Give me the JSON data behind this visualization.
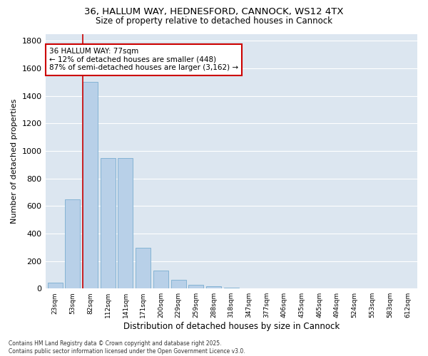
{
  "title_line1": "36, HALLUM WAY, HEDNESFORD, CANNOCK, WS12 4TX",
  "title_line2": "Size of property relative to detached houses in Cannock",
  "xlabel": "Distribution of detached houses by size in Cannock",
  "ylabel": "Number of detached properties",
  "categories": [
    "23sqm",
    "53sqm",
    "82sqm",
    "112sqm",
    "141sqm",
    "171sqm",
    "200sqm",
    "229sqm",
    "259sqm",
    "288sqm",
    "318sqm",
    "347sqm",
    "377sqm",
    "406sqm",
    "435sqm",
    "465sqm",
    "494sqm",
    "524sqm",
    "553sqm",
    "583sqm",
    "612sqm"
  ],
  "values": [
    40,
    650,
    1500,
    950,
    950,
    295,
    130,
    65,
    25,
    15,
    5,
    2,
    2,
    0,
    0,
    0,
    0,
    0,
    0,
    0,
    0
  ],
  "bar_color": "#b8d0e8",
  "bar_edge_color": "#7aadd0",
  "vline_index": 2,
  "annotation_line1": "36 HALLUM WAY: 77sqm",
  "annotation_line2": "← 12% of detached houses are smaller (448)",
  "annotation_line3": "87% of semi-detached houses are larger (3,162) →",
  "annotation_box_facecolor": "#ffffff",
  "annotation_box_edgecolor": "#cc0000",
  "vline_color": "#cc0000",
  "ylim": [
    0,
    1850
  ],
  "yticks": [
    0,
    200,
    400,
    600,
    800,
    1000,
    1200,
    1400,
    1600,
    1800
  ],
  "fig_background": "#ffffff",
  "plot_background": "#dce6f0",
  "grid_color": "#ffffff",
  "footer_line1": "Contains HM Land Registry data © Crown copyright and database right 2025.",
  "footer_line2": "Contains public sector information licensed under the Open Government Licence v3.0."
}
